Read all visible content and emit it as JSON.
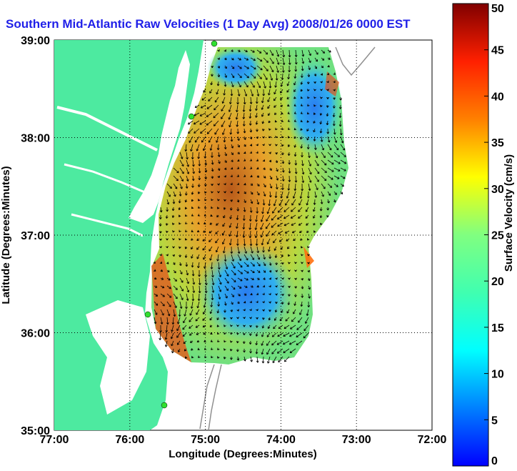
{
  "title": "Southern Mid-Atlantic Raw Velocities (1 Day Avg) 2008/01/26 0000 EST",
  "chart_data": {
    "type": "heatmap",
    "title": "Southern Mid-Atlantic Raw Velocities (1 Day Avg) 2008/01/26 0000 EST",
    "xlabel": "Longitude (Degrees:Minutes)",
    "ylabel": "Latitude (Degrees:Minutes)",
    "colorbar_label": "Surface Velocity (cm/s)",
    "x_ticks": [
      "77:00",
      "76:00",
      "75:00",
      "74:00",
      "73:00",
      "72:00"
    ],
    "y_ticks": [
      "39:00",
      "38:00",
      "37:00",
      "36:00",
      "35:00"
    ],
    "colorbar_ticks": [
      "50",
      "45",
      "40",
      "35",
      "30",
      "25",
      "20",
      "15",
      "10",
      "5",
      "0"
    ],
    "xlim": [
      -77,
      -72
    ],
    "ylim": [
      35,
      39
    ],
    "clim": [
      0,
      50
    ],
    "grid": true,
    "colormap": "jet",
    "land_color": "#4deaa0",
    "arrow_color": "#000000"
  }
}
